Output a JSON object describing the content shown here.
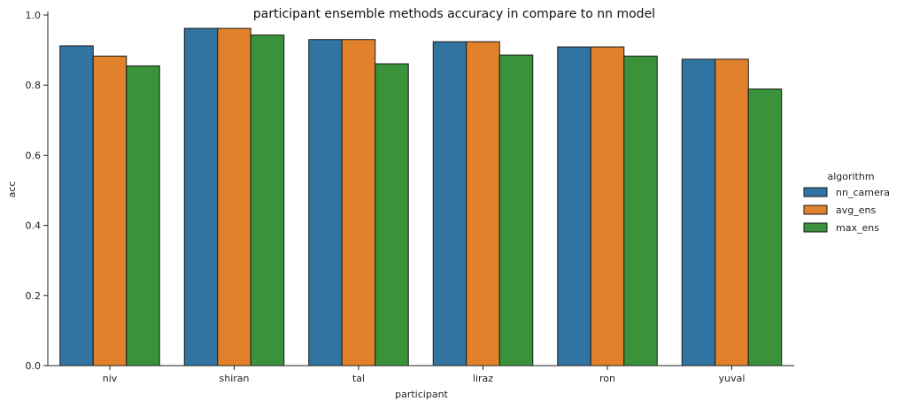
{
  "chart_data": {
    "type": "bar",
    "title": "participant ensemble methods accuracy in compare to nn model",
    "xlabel": "participant",
    "ylabel": "acc",
    "ylim": [
      0,
      1.0
    ],
    "yticks": [
      "0.0",
      "0.2",
      "0.4",
      "0.6",
      "0.8",
      "1.0"
    ],
    "categories": [
      "niv",
      "shiran",
      "tal",
      "liraz",
      "ron",
      "yuval"
    ],
    "legend": {
      "title": "algorithm",
      "placement": "right"
    },
    "grid": false,
    "series": [
      {
        "name": "nn_camera",
        "color": "#3274a1",
        "values": [
          0.912,
          0.962,
          0.93,
          0.924,
          0.909,
          0.874
        ]
      },
      {
        "name": "avg_ens",
        "color": "#e1812c",
        "values": [
          0.883,
          0.962,
          0.93,
          0.924,
          0.909,
          0.874
        ]
      },
      {
        "name": "max_ens",
        "color": "#3a923a",
        "values": [
          0.855,
          0.943,
          0.861,
          0.886,
          0.883,
          0.789
        ]
      }
    ]
  }
}
